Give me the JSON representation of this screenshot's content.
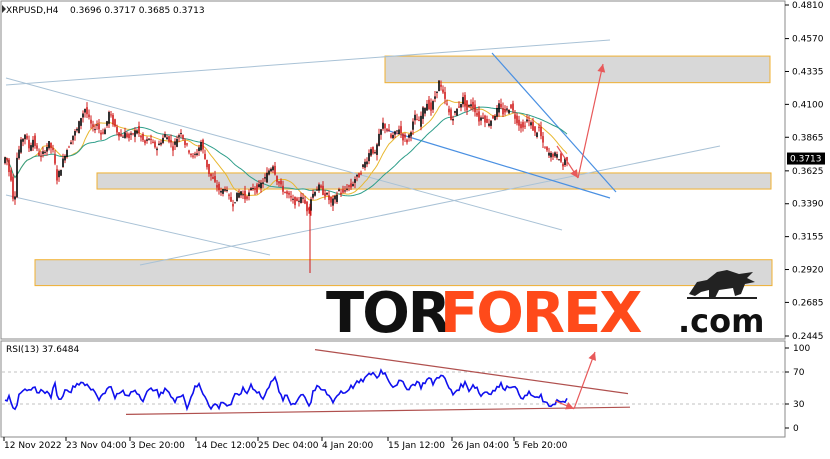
{
  "window": {
    "symbol_label": "XRPUSD,H4",
    "ohlc_text": "0.3696 0.3717 0.3685 0.3713"
  },
  "chart_data": [
    {
      "type": "candlestick",
      "title": "XRPUSD,H4",
      "ohlc_readout": {
        "open": 0.3696,
        "high": 0.3717,
        "low": 0.3685,
        "close": 0.3713
      },
      "current_price": 0.3713,
      "y_ticks": [
        0.481,
        0.457,
        0.4335,
        0.41,
        0.3865,
        0.3625,
        0.339,
        0.3155,
        0.292,
        0.2685,
        0.2445
      ],
      "ylim": [
        0.2445,
        0.481
      ],
      "x_tick_labels": [
        "12 Nov 2022",
        "23 Nov 04:00",
        "3 Dec 20:00",
        "14 Dec 12:00",
        "25 Dec 04:00",
        "4 Jan 20:00",
        "15 Jan 12:00",
        "26 Jan 04:00",
        "5 Feb 20:00"
      ],
      "price_path": [
        [
          0,
          0.368
        ],
        [
          3,
          0.374
        ],
        [
          6,
          0.362
        ],
        [
          9,
          0.355
        ],
        [
          11,
          0.333
        ],
        [
          14,
          0.372
        ],
        [
          18,
          0.383
        ],
        [
          22,
          0.389
        ],
        [
          26,
          0.379
        ],
        [
          30,
          0.385
        ],
        [
          34,
          0.377
        ],
        [
          38,
          0.372
        ],
        [
          42,
          0.378
        ],
        [
          46,
          0.382
        ],
        [
          50,
          0.376
        ],
        [
          54,
          0.357
        ],
        [
          58,
          0.365
        ],
        [
          62,
          0.375
        ],
        [
          66,
          0.381
        ],
        [
          70,
          0.388
        ],
        [
          74,
          0.392
        ],
        [
          78,
          0.401
        ],
        [
          82,
          0.407
        ],
        [
          86,
          0.399
        ],
        [
          90,
          0.392
        ],
        [
          94,
          0.396
        ],
        [
          98,
          0.389
        ],
        [
          102,
          0.392
        ],
        [
          106,
          0.404
        ],
        [
          110,
          0.397
        ],
        [
          114,
          0.391
        ],
        [
          118,
          0.387
        ],
        [
          122,
          0.389
        ],
        [
          126,
          0.386
        ],
        [
          130,
          0.389
        ],
        [
          134,
          0.392
        ],
        [
          138,
          0.386
        ],
        [
          142,
          0.382
        ],
        [
          146,
          0.386
        ],
        [
          150,
          0.381
        ],
        [
          154,
          0.379
        ],
        [
          158,
          0.384
        ],
        [
          162,
          0.388
        ],
        [
          166,
          0.385
        ],
        [
          170,
          0.379
        ],
        [
          174,
          0.386
        ],
        [
          178,
          0.391
        ],
        [
          182,
          0.382
        ],
        [
          186,
          0.377
        ],
        [
          190,
          0.372
        ],
        [
          194,
          0.376
        ],
        [
          198,
          0.383
        ],
        [
          202,
          0.371
        ],
        [
          206,
          0.361
        ],
        [
          210,
          0.356
        ],
        [
          214,
          0.351
        ],
        [
          218,
          0.347
        ],
        [
          222,
          0.351
        ],
        [
          226,
          0.343
        ],
        [
          230,
          0.339
        ],
        [
          234,
          0.345
        ],
        [
          238,
          0.348
        ],
        [
          242,
          0.343
        ],
        [
          246,
          0.346
        ],
        [
          250,
          0.351
        ],
        [
          254,
          0.349
        ],
        [
          258,
          0.353
        ],
        [
          262,
          0.357
        ],
        [
          266,
          0.363
        ],
        [
          270,
          0.367
        ],
        [
          274,
          0.356
        ],
        [
          278,
          0.351
        ],
        [
          282,
          0.347
        ],
        [
          286,
          0.344
        ],
        [
          290,
          0.341
        ],
        [
          294,
          0.339
        ],
        [
          298,
          0.345
        ],
        [
          302,
          0.339
        ],
        [
          305,
          0.333
        ],
        [
          308,
          0.343
        ],
        [
          312,
          0.349
        ],
        [
          316,
          0.351
        ],
        [
          320,
          0.347
        ],
        [
          324,
          0.345
        ],
        [
          328,
          0.339
        ],
        [
          332,
          0.343
        ],
        [
          336,
          0.349
        ],
        [
          340,
          0.346
        ],
        [
          344,
          0.351
        ],
        [
          348,
          0.351
        ],
        [
          352,
          0.357
        ],
        [
          356,
          0.359
        ],
        [
          360,
          0.366
        ],
        [
          364,
          0.371
        ],
        [
          368,
          0.379
        ],
        [
          372,
          0.374
        ],
        [
          376,
          0.387
        ],
        [
          380,
          0.396
        ],
        [
          384,
          0.392
        ],
        [
          388,
          0.386
        ],
        [
          392,
          0.389
        ],
        [
          396,
          0.393
        ],
        [
          400,
          0.386
        ],
        [
          404,
          0.384
        ],
        [
          408,
          0.392
        ],
        [
          412,
          0.401
        ],
        [
          416,
          0.397
        ],
        [
          420,
          0.406
        ],
        [
          424,
          0.411
        ],
        [
          428,
          0.406
        ],
        [
          432,
          0.416
        ],
        [
          436,
          0.426
        ],
        [
          440,
          0.417
        ],
        [
          444,
          0.409
        ],
        [
          448,
          0.399
        ],
        [
          452,
          0.404
        ],
        [
          456,
          0.409
        ],
        [
          460,
          0.414
        ],
        [
          464,
          0.406
        ],
        [
          468,
          0.411
        ],
        [
          472,
          0.406
        ],
        [
          476,
          0.399
        ],
        [
          480,
          0.402
        ],
        [
          484,
          0.396
        ],
        [
          488,
          0.399
        ],
        [
          492,
          0.403
        ],
        [
          496,
          0.409
        ],
        [
          500,
          0.404
        ],
        [
          504,
          0.406
        ],
        [
          508,
          0.409
        ],
        [
          512,
          0.401
        ],
        [
          516,
          0.396
        ],
        [
          520,
          0.393
        ],
        [
          524,
          0.399
        ],
        [
          528,
          0.396
        ],
        [
          532,
          0.389
        ],
        [
          536,
          0.393
        ],
        [
          540,
          0.381
        ],
        [
          544,
          0.376
        ],
        [
          548,
          0.374
        ],
        [
          552,
          0.374
        ],
        [
          556,
          0.372
        ],
        [
          560,
          0.366
        ],
        [
          562,
          0.371
        ]
      ],
      "overlays": {
        "moving_averages": [
          {
            "color": "#e8b830"
          },
          {
            "color": "#2e9e8a"
          }
        ],
        "zones": [
          {
            "price_low": 0.4255,
            "price_high": 0.4445,
            "color": "#d8d8d8",
            "border": "#f0b030"
          },
          {
            "price_low": 0.3495,
            "price_high": 0.361,
            "color": "#d8d8d8",
            "border": "#f0b030"
          },
          {
            "price_low": 0.2805,
            "price_high": 0.299,
            "color": "#d8d8d8",
            "border": "#f0b030"
          }
        ],
        "colors": {
          "trend_channel": "#a9c2d6",
          "blue_lines": "#4a90e2",
          "forecast_arrows": "#e8595a",
          "candle": "#d01818"
        }
      }
    },
    {
      "type": "line",
      "title": "RSI(13) 37.6484",
      "indicator": "RSI(13)",
      "value": 37.6484,
      "y_ticks": [
        100,
        70,
        30,
        0
      ],
      "ylim": [
        0,
        100
      ],
      "levels": [
        30,
        70
      ],
      "rsi_path": [
        [
          0,
          32
        ],
        [
          4,
          40
        ],
        [
          8,
          28
        ],
        [
          11,
          24
        ],
        [
          14,
          44
        ],
        [
          18,
          48
        ],
        [
          22,
          44
        ],
        [
          26,
          46
        ],
        [
          30,
          50
        ],
        [
          34,
          44
        ],
        [
          38,
          48
        ],
        [
          42,
          44
        ],
        [
          46,
          40
        ],
        [
          50,
          54
        ],
        [
          54,
          34
        ],
        [
          58,
          42
        ],
        [
          62,
          50
        ],
        [
          66,
          46
        ],
        [
          70,
          54
        ],
        [
          74,
          56
        ],
        [
          78,
          58
        ],
        [
          82,
          52
        ],
        [
          86,
          48
        ],
        [
          90,
          46
        ],
        [
          94,
          36
        ],
        [
          98,
          44
        ],
        [
          102,
          48
        ],
        [
          106,
          52
        ],
        [
          110,
          40
        ],
        [
          114,
          42
        ],
        [
          118,
          46
        ],
        [
          122,
          38
        ],
        [
          126,
          44
        ],
        [
          130,
          48
        ],
        [
          134,
          42
        ],
        [
          138,
          36
        ],
        [
          142,
          44
        ],
        [
          146,
          48
        ],
        [
          150,
          50
        ],
        [
          154,
          40
        ],
        [
          158,
          44
        ],
        [
          162,
          50
        ],
        [
          166,
          40
        ],
        [
          170,
          32
        ],
        [
          174,
          40
        ],
        [
          178,
          44
        ],
        [
          182,
          24
        ],
        [
          186,
          40
        ],
        [
          190,
          50
        ],
        [
          194,
          54
        ],
        [
          198,
          44
        ],
        [
          202,
          36
        ],
        [
          206,
          24
        ],
        [
          210,
          30
        ],
        [
          214,
          26
        ],
        [
          218,
          34
        ],
        [
          222,
          28
        ],
        [
          226,
          30
        ],
        [
          230,
          40
        ],
        [
          234,
          42
        ],
        [
          238,
          48
        ],
        [
          242,
          44
        ],
        [
          246,
          54
        ],
        [
          250,
          48
        ],
        [
          254,
          44
        ],
        [
          258,
          36
        ],
        [
          262,
          46
        ],
        [
          266,
          60
        ],
        [
          270,
          64
        ],
        [
          274,
          44
        ],
        [
          278,
          36
        ],
        [
          282,
          40
        ],
        [
          286,
          30
        ],
        [
          290,
          32
        ],
        [
          294,
          38
        ],
        [
          298,
          44
        ],
        [
          302,
          34
        ],
        [
          305,
          26
        ],
        [
          308,
          46
        ],
        [
          312,
          50
        ],
        [
          316,
          48
        ],
        [
          320,
          46
        ],
        [
          324,
          40
        ],
        [
          328,
          34
        ],
        [
          332,
          40
        ],
        [
          336,
          46
        ],
        [
          340,
          44
        ],
        [
          344,
          50
        ],
        [
          348,
          52
        ],
        [
          352,
          56
        ],
        [
          356,
          58
        ],
        [
          360,
          62
        ],
        [
          364,
          66
        ],
        [
          368,
          70
        ],
        [
          372,
          62
        ],
        [
          376,
          72
        ],
        [
          380,
          68
        ],
        [
          384,
          60
        ],
        [
          388,
          52
        ],
        [
          392,
          56
        ],
        [
          396,
          58
        ],
        [
          400,
          52
        ],
        [
          404,
          50
        ],
        [
          408,
          54
        ],
        [
          412,
          58
        ],
        [
          416,
          52
        ],
        [
          420,
          58
        ],
        [
          424,
          62
        ],
        [
          428,
          56
        ],
        [
          432,
          62
        ],
        [
          436,
          68
        ],
        [
          440,
          60
        ],
        [
          444,
          50
        ],
        [
          448,
          42
        ],
        [
          452,
          48
        ],
        [
          456,
          52
        ],
        [
          460,
          56
        ],
        [
          464,
          48
        ],
        [
          468,
          54
        ],
        [
          472,
          50
        ],
        [
          476,
          40
        ],
        [
          480,
          46
        ],
        [
          484,
          44
        ],
        [
          488,
          46
        ],
        [
          492,
          50
        ],
        [
          496,
          54
        ],
        [
          500,
          50
        ],
        [
          504,
          52
        ],
        [
          508,
          54
        ],
        [
          512,
          46
        ],
        [
          516,
          40
        ],
        [
          520,
          38
        ],
        [
          524,
          44
        ],
        [
          528,
          40
        ],
        [
          532,
          36
        ],
        [
          536,
          40
        ],
        [
          540,
          30
        ],
        [
          544,
          28
        ],
        [
          548,
          30
        ],
        [
          552,
          34
        ],
        [
          556,
          32
        ],
        [
          560,
          30
        ],
        [
          562,
          37.6
        ]
      ],
      "overlays": {
        "line_color": "#1010ee",
        "trend_line": "#b0504e"
      }
    }
  ],
  "watermark": {
    "part1": "TOR",
    "part2": "FOREX",
    "part3": ".com",
    "color1": "#111111",
    "color2": "#ff4a1a"
  }
}
